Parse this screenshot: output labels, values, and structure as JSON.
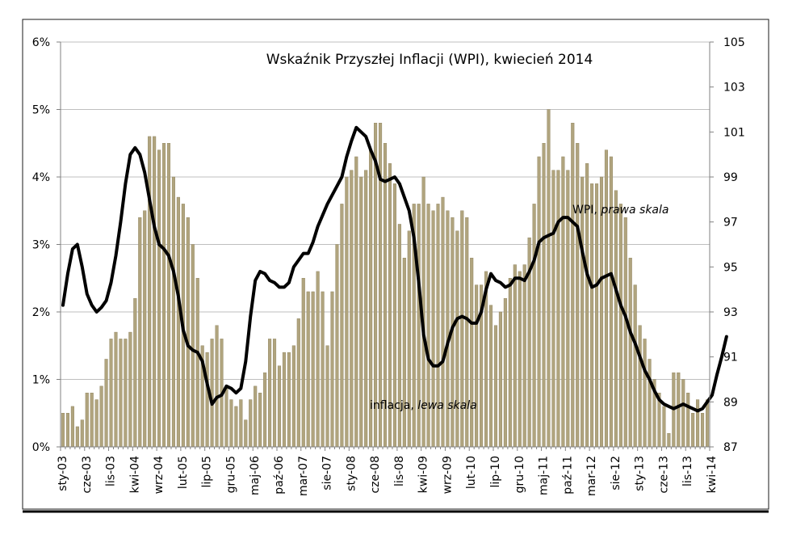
{
  "chart_data": {
    "type": "bar+line",
    "title": "Wskaźnik Przyszłej Inflacji (WPI), kwiecień 2014",
    "x_tick_labels": [
      "sty-03",
      "cze-03",
      "lis-03",
      "kwi-04",
      "wrz-04",
      "lut-05",
      "lip-05",
      "gru-05",
      "maj-06",
      "paź-06",
      "mar-07",
      "sie-07",
      "sty-08",
      "cze-08",
      "lis-08",
      "kwi-09",
      "wrz-09",
      "lut-10",
      "lip-10",
      "gru-10",
      "maj-11",
      "paź-11",
      "mar-12",
      "sie-12",
      "sty-13",
      "cze-13",
      "lis-13",
      "kwi-14"
    ],
    "left_axis": {
      "ylim": [
        0,
        6
      ],
      "ticks": [
        "0%",
        "1%",
        "2%",
        "3%",
        "4%",
        "5%",
        "6%"
      ]
    },
    "right_axis": {
      "ylim": [
        87,
        105
      ],
      "ticks": [
        "87",
        "89",
        "91",
        "93",
        "95",
        "97",
        "99",
        "101",
        "103",
        "105"
      ]
    },
    "series": [
      {
        "name": "inflacja, lewa skala",
        "name_plain": "inflacja, ",
        "name_italic": "lewa skala",
        "type": "bar",
        "axis": "left",
        "unit": "%",
        "values": [
          0.5,
          0.5,
          0.6,
          0.3,
          0.4,
          0.8,
          0.8,
          0.7,
          0.9,
          1.3,
          1.6,
          1.7,
          1.6,
          1.6,
          1.7,
          2.2,
          3.4,
          3.5,
          4.6,
          4.6,
          4.4,
          4.5,
          4.5,
          4.0,
          3.7,
          3.6,
          3.4,
          3.0,
          2.5,
          1.5,
          1.4,
          1.6,
          1.8,
          1.6,
          0.9,
          0.7,
          0.6,
          0.7,
          0.4,
          0.7,
          0.9,
          0.8,
          1.1,
          1.6,
          1.6,
          1.2,
          1.4,
          1.4,
          1.5,
          1.9,
          2.5,
          2.3,
          2.3,
          2.6,
          2.3,
          1.5,
          2.3,
          3.0,
          3.6,
          4.0,
          4.1,
          4.3,
          4.0,
          4.1,
          4.4,
          4.8,
          4.8,
          4.5,
          4.2,
          3.9,
          3.3,
          2.8,
          3.2,
          3.6,
          3.6,
          4.0,
          3.6,
          3.5,
          3.6,
          3.7,
          3.5,
          3.4,
          3.2,
          3.5,
          3.4,
          2.8,
          2.4,
          2.4,
          2.6,
          2.1,
          1.8,
          2.0,
          2.2,
          2.5,
          2.7,
          2.6,
          2.7,
          3.1,
          3.6,
          4.3,
          4.5,
          5.0,
          4.1,
          4.1,
          4.3,
          4.1,
          4.8,
          4.5,
          4.0,
          4.2,
          3.9,
          3.9,
          4.0,
          4.4,
          4.3,
          3.8,
          3.6,
          3.4,
          2.8,
          2.4,
          1.8,
          1.6,
          1.3,
          1.0,
          0.8,
          0.6,
          0.2,
          1.1,
          1.1,
          1.0,
          0.8,
          0.5,
          0.7,
          0.5,
          0.7
        ],
        "color": "#b0a47e"
      },
      {
        "name": "WPI, prawa skala",
        "name_plain": "WPI, ",
        "name_italic": "prawa skala",
        "type": "line",
        "axis": "right",
        "values": [
          93.3,
          94.7,
          95.8,
          96.0,
          95.0,
          93.8,
          93.3,
          93.0,
          93.2,
          93.5,
          94.3,
          95.5,
          97.0,
          98.7,
          100.0,
          100.3,
          100.0,
          99.2,
          98.0,
          96.8,
          96.0,
          95.8,
          95.5,
          94.8,
          93.7,
          92.2,
          91.5,
          91.3,
          91.2,
          90.8,
          89.8,
          88.9,
          89.2,
          89.3,
          89.7,
          89.6,
          89.4,
          89.6,
          90.8,
          92.8,
          94.4,
          94.8,
          94.7,
          94.4,
          94.3,
          94.1,
          94.1,
          94.3,
          95.0,
          95.3,
          95.6,
          95.6,
          96.1,
          96.8,
          97.3,
          97.8,
          98.2,
          98.6,
          99.0,
          99.9,
          100.6,
          101.2,
          101.0,
          100.8,
          100.2,
          99.7,
          98.9,
          98.8,
          98.9,
          99.0,
          98.7,
          98.1,
          97.5,
          96.3,
          94.3,
          92.0,
          90.9,
          90.6,
          90.6,
          90.8,
          91.6,
          92.3,
          92.7,
          92.8,
          92.7,
          92.5,
          92.5,
          93.0,
          94.0,
          94.7,
          94.4,
          94.3,
          94.1,
          94.2,
          94.5,
          94.5,
          94.4,
          94.8,
          95.3,
          96.1,
          96.3,
          96.4,
          96.5,
          97.0,
          97.2,
          97.2,
          97.0,
          96.8,
          95.7,
          94.7,
          94.1,
          94.2,
          94.5,
          94.6,
          94.7,
          94.0,
          93.3,
          92.8,
          92.1,
          91.6,
          91.0,
          90.4,
          90.0,
          89.5,
          89.1,
          88.9,
          88.8,
          88.7,
          88.8,
          88.9,
          88.8,
          88.7,
          88.6,
          88.7,
          89.0,
          89.3,
          90.2,
          91.0,
          91.9
        ],
        "color": "#000000"
      }
    ],
    "legend": "none (inline labels)",
    "grid": "horizontal (left axis)"
  }
}
